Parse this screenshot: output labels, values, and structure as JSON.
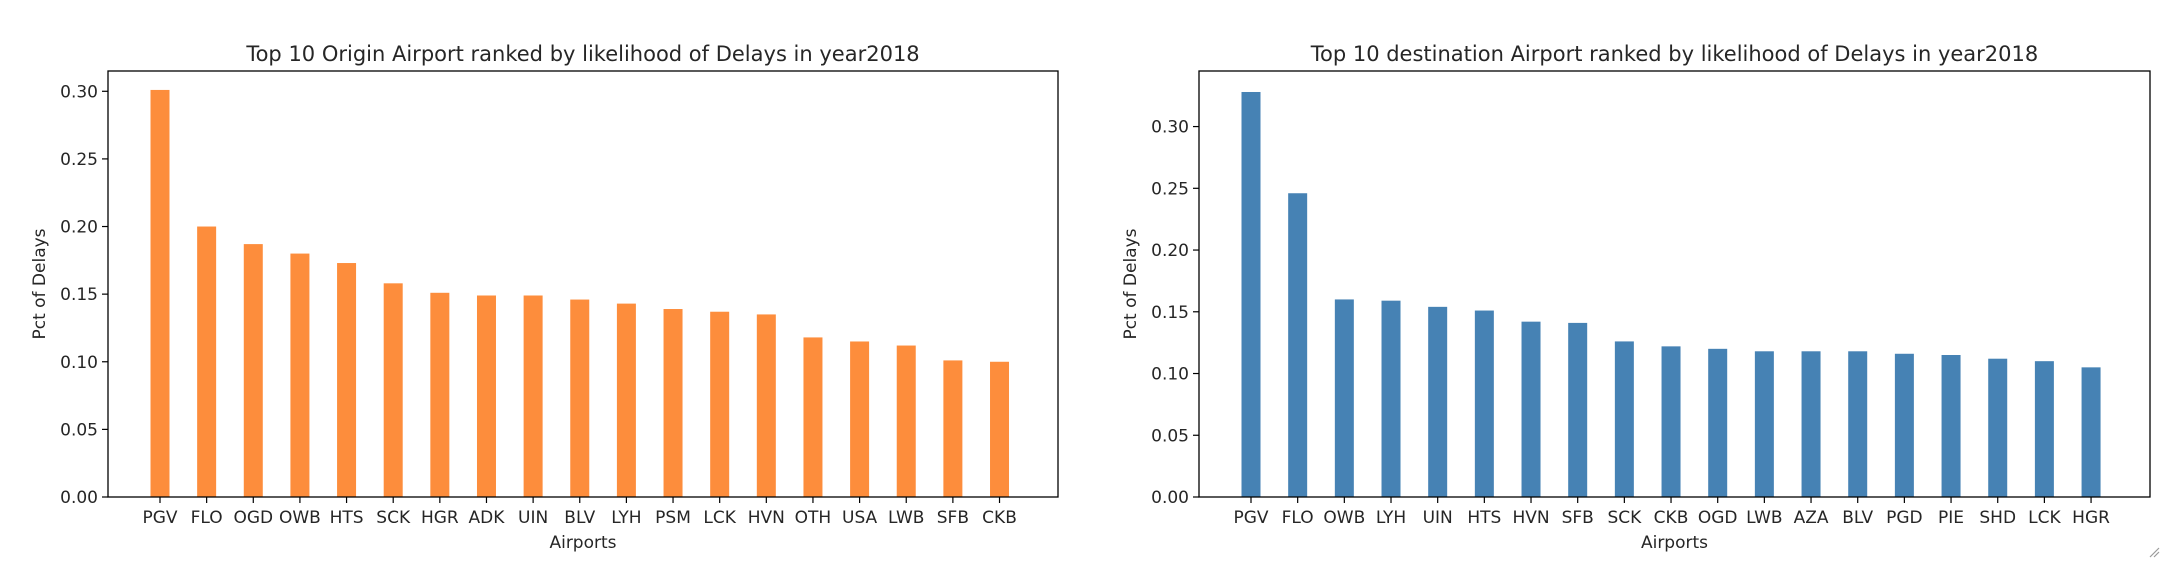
{
  "chart_data": [
    {
      "type": "bar",
      "title": "Top 10 Origin Airport ranked by likelihood of Delays in year2018",
      "xlabel": "Airports",
      "ylabel": "Pct of Delays",
      "ylim": [
        0,
        0.315
      ],
      "yticks": [
        "0.00",
        "0.05",
        "0.10",
        "0.15",
        "0.20",
        "0.25",
        "0.30"
      ],
      "grid": false,
      "color": "#fd8d3c",
      "categories": [
        "PGV",
        "FLO",
        "OGD",
        "OWB",
        "HTS",
        "SCK",
        "HGR",
        "ADK",
        "UIN",
        "BLV",
        "LYH",
        "PSM",
        "LCK",
        "HVN",
        "OTH",
        "USA",
        "LWB",
        "SFB",
        "CKB"
      ],
      "values": [
        0.301,
        0.2,
        0.187,
        0.18,
        0.173,
        0.158,
        0.151,
        0.149,
        0.149,
        0.146,
        0.143,
        0.139,
        0.137,
        0.135,
        0.118,
        0.115,
        0.112,
        0.101,
        0.1
      ]
    },
    {
      "type": "bar",
      "title": "Top 10 destination Airport ranked by likelihood of Delays in year2018",
      "xlabel": "Airports",
      "ylabel": "Pct of Delays",
      "ylim": [
        0,
        0.345
      ],
      "yticks": [
        "0.00",
        "0.05",
        "0.10",
        "0.15",
        "0.20",
        "0.25",
        "0.30"
      ],
      "grid": false,
      "color": "#4682b4",
      "categories": [
        "PGV",
        "FLO",
        "OWB",
        "LYH",
        "UIN",
        "HTS",
        "HVN",
        "SFB",
        "SCK",
        "CKB",
        "OGD",
        "LWB",
        "AZA",
        "BLV",
        "PGD",
        "PIE",
        "SHD",
        "LCK",
        "HGR"
      ],
      "values": [
        0.328,
        0.246,
        0.16,
        0.159,
        0.154,
        0.151,
        0.142,
        0.141,
        0.126,
        0.122,
        0.12,
        0.118,
        0.118,
        0.118,
        0.116,
        0.115,
        0.112,
        0.11,
        0.105
      ]
    }
  ]
}
